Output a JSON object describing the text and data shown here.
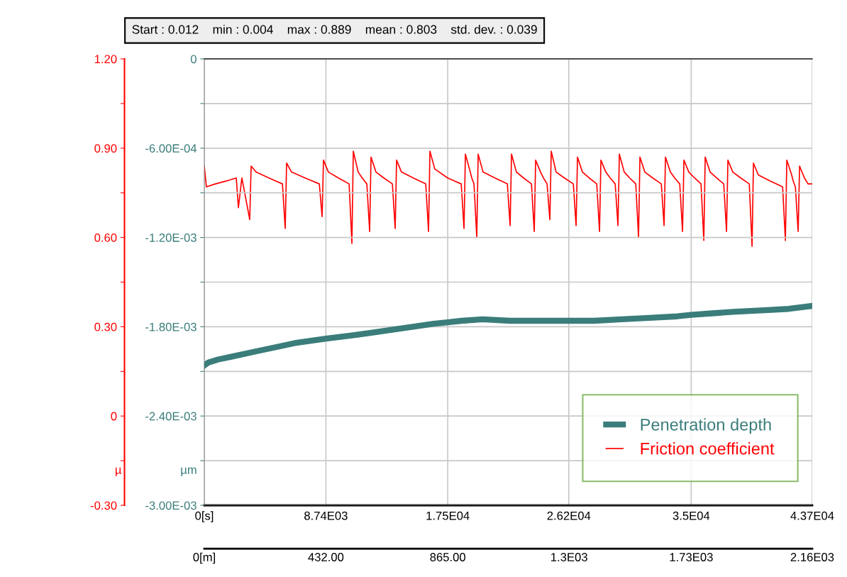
{
  "chart_data": {
    "type": "line",
    "annotations": [
      "Start : 0.012    min : 0.004    max : 0.889    mean : 0.803    std. dev. : 0.039"
    ],
    "ylabel": "µ",
    "y2label": "µm",
    "xlim": [
      0,
      43700
    ],
    "xticks": [
      {
        "value": 0,
        "label": "0[s]"
      },
      {
        "value": 8740,
        "label": "8.74E03"
      },
      {
        "value": 17500,
        "label": "1.75E04"
      },
      {
        "value": 26200,
        "label": "2.62E04"
      },
      {
        "value": 35000,
        "label": "3.5E04"
      },
      {
        "value": 43700,
        "label": "4.37E04"
      }
    ],
    "x2lim": [
      0,
      2160
    ],
    "x2ticks": [
      {
        "value": 0,
        "label": "0[m]"
      },
      {
        "value": 432,
        "label": "432.00"
      },
      {
        "value": 865,
        "label": "865.00"
      },
      {
        "value": 1296,
        "label": "1.3E03"
      },
      {
        "value": 1730,
        "label": "1.73E03"
      },
      {
        "value": 2160,
        "label": "2.16E03"
      }
    ],
    "ylim": [
      -0.3,
      1.2
    ],
    "yticks": [
      {
        "value": -0.3,
        "label": "-0.30"
      },
      {
        "value": -0.15,
        "label": null
      },
      0,
      {
        "value": 0.15,
        "label": null
      },
      {
        "value": 0.3,
        "label": "0.30"
      },
      {
        "value": 0.45,
        "label": null
      },
      {
        "value": 0.6,
        "label": "0.60"
      },
      {
        "value": 0.75,
        "label": null
      },
      {
        "value": 0.9,
        "label": "0.90"
      },
      {
        "value": 1.05,
        "label": null
      },
      {
        "value": 1.2,
        "label": "1.20"
      }
    ],
    "y2lim": [
      -0.003,
      0
    ],
    "y2ticks": [
      {
        "value": -0.003,
        "label": "-3.00E-03"
      },
      {
        "value": -0.0027,
        "label": null
      },
      {
        "value": -0.0024,
        "label": "-2.40E-03"
      },
      {
        "value": -0.0021,
        "label": null
      },
      {
        "value": -0.0018,
        "label": "-1.80E-03"
      },
      {
        "value": -0.0015,
        "label": null
      },
      {
        "value": -0.0012,
        "label": "-1.20E-03"
      },
      {
        "value": -0.0009,
        "label": null
      },
      {
        "value": -0.0006,
        "label": "-6.00E-04"
      },
      {
        "value": -0.0003,
        "label": null
      },
      0
    ],
    "grid": true,
    "legend": "bottom right",
    "series": [
      {
        "name": "Penetration depth",
        "color": "#3a7d7b",
        "axis": "y2",
        "x": [
          0,
          300,
          1000,
          2000,
          3500,
          5000,
          6500,
          8740,
          10500,
          12000,
          13500,
          15000,
          16500,
          17500,
          18500,
          20000,
          22000,
          24000,
          26200,
          28000,
          30000,
          32000,
          34000,
          35000,
          36500,
          38000,
          40000,
          42000,
          43700
        ],
        "values": [
          -0.00206,
          -0.00204,
          -0.00202,
          -0.002,
          -0.00197,
          -0.00194,
          -0.00191,
          -0.00188,
          -0.00186,
          -0.00184,
          -0.00182,
          -0.0018,
          -0.00178,
          -0.00177,
          -0.00176,
          -0.00175,
          -0.00176,
          -0.00176,
          -0.00176,
          -0.00176,
          -0.00175,
          -0.00174,
          -0.00173,
          -0.00172,
          -0.00171,
          -0.0017,
          -0.00169,
          -0.00168,
          -0.00166
        ]
      },
      {
        "name": "Friction coefficient",
        "color": "#ff0000",
        "x": [
          0,
          150,
          800,
          1600,
          2300,
          2450,
          2700,
          3266,
          3366,
          3716,
          4641,
          5616,
          5816,
          5916,
          6266,
          7242,
          8268,
          8468,
          8568,
          8918,
          9639,
          10410,
          10610,
          10710,
          11060,
          11348,
          11685,
          11885,
          11985,
          12335,
          12903,
          13521,
          13721,
          13821,
          14171,
          15020,
          15918,
          16118,
          16218,
          16568,
          17493,
          18468,
          18668,
          18768,
          19118,
          19227,
          19386,
          19586,
          19686,
          20036,
          20885,
          21783,
          21983,
          22083,
          22433,
          22950,
          23517,
          23717,
          23817,
          24167,
          24378,
          24639,
          24839,
          24939,
          25289,
          25883,
          26526,
          26726,
          26826,
          27176,
          27668,
          28209,
          28409,
          28509,
          28859,
          29172,
          29535,
          29735,
          29835,
          30185,
          30575,
          31014,
          31214,
          31314,
          31664,
          32232,
          32850,
          33050,
          33150,
          33500,
          33813,
          34176,
          34376,
          34476,
          34826,
          35241,
          35706,
          35906,
          36006,
          36356,
          36822,
          37338,
          37538,
          37638,
          37988,
          38556,
          39174,
          39374,
          39474,
          39824,
          40673,
          41571,
          41771,
          41871,
          42221,
          42330,
          42489,
          42689,
          42789,
          43139,
          43400,
          43700
        ],
        "values": [
          0.84,
          0.77,
          0.78,
          0.79,
          0.8,
          0.7,
          0.8,
          0.66,
          0.84,
          0.82,
          0.8,
          0.78,
          0.63,
          0.85,
          0.82,
          0.8,
          0.78,
          0.67,
          0.86,
          0.82,
          0.8,
          0.78,
          0.58,
          0.89,
          0.82,
          0.8,
          0.78,
          0.62,
          0.87,
          0.82,
          0.8,
          0.78,
          0.63,
          0.86,
          0.82,
          0.8,
          0.78,
          0.62,
          0.89,
          0.83,
          0.8,
          0.78,
          0.63,
          0.88,
          0.82,
          0.8,
          0.78,
          0.6,
          0.88,
          0.82,
          0.8,
          0.78,
          0.64,
          0.88,
          0.82,
          0.8,
          0.78,
          0.62,
          0.86,
          0.82,
          0.8,
          0.78,
          0.66,
          0.89,
          0.82,
          0.8,
          0.78,
          0.64,
          0.87,
          0.82,
          0.8,
          0.78,
          0.62,
          0.86,
          0.82,
          0.8,
          0.78,
          0.64,
          0.88,
          0.82,
          0.8,
          0.78,
          0.6,
          0.87,
          0.82,
          0.8,
          0.78,
          0.64,
          0.87,
          0.82,
          0.8,
          0.78,
          0.62,
          0.86,
          0.82,
          0.8,
          0.78,
          0.59,
          0.87,
          0.82,
          0.8,
          0.78,
          0.62,
          0.86,
          0.82,
          0.8,
          0.78,
          0.57,
          0.85,
          0.81,
          0.79,
          0.77,
          0.59,
          0.86,
          0.81,
          0.79,
          0.77,
          0.62,
          0.84,
          0.8,
          0.78,
          0.78
        ]
      }
    ]
  }
}
